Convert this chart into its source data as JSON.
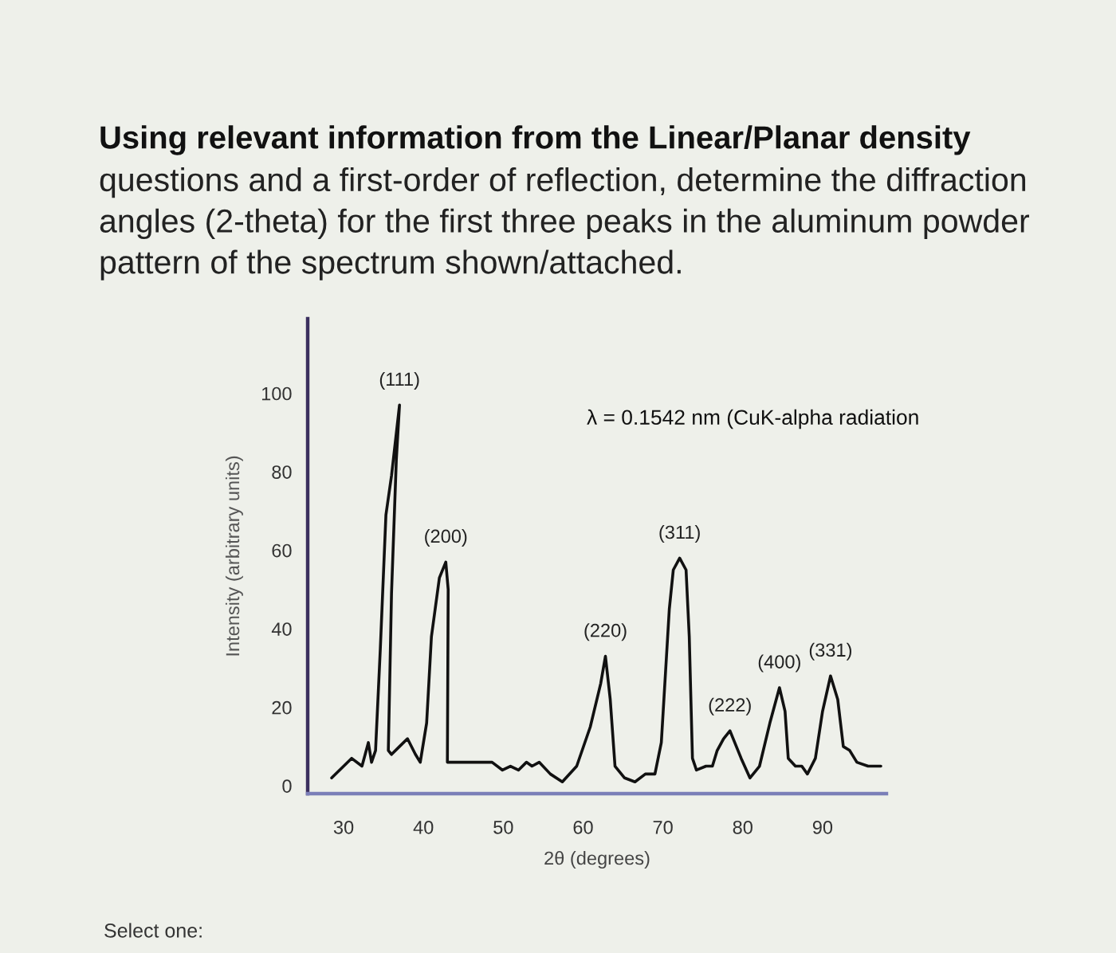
{
  "chart_data": {
    "type": "line",
    "title": "Using relevant information from the Linear/Planar density",
    "subtitle": "questions and a first-order of reflection, determine the diffraction angles (2-theta) for the first three peaks in the aluminum powder pattern of the spectrum shown/attached.",
    "xlabel": "2θ (degrees)",
    "ylabel": "Intensity (arbitrary units)",
    "x": [
      28.5,
      31.0,
      32.3,
      33.1,
      33.5,
      34.0,
      34.6,
      35.3,
      36.0,
      37.0,
      36.6,
      36.0,
      35.6,
      36.0,
      37.0,
      38.0,
      39.0,
      39.6,
      40.4,
      41.0,
      42.0,
      42.8,
      43.1,
      43.0,
      44.3,
      46.3,
      48.6,
      49.9,
      50.9,
      51.9,
      52.9,
      53.6,
      54.5,
      55.9,
      57.4,
      59.2,
      60.9,
      62.2,
      62.8,
      63.4,
      64.0,
      65.2,
      66.5,
      67.8,
      69.0,
      69.8,
      70.8,
      71.3,
      72.1,
      72.9,
      73.3,
      73.7,
      74.2,
      75.4,
      76.2,
      76.8,
      77.6,
      78.4,
      79.8,
      80.9,
      82.1,
      83.4,
      84.6,
      85.3,
      85.7,
      86.6,
      87.4,
      88.1,
      89.1,
      90.0,
      91.0,
      91.9,
      92.6,
      93.4,
      94.3,
      95.7,
      97.3
    ],
    "series": [
      {
        "color": "#111111",
        "values": [
          2,
          7,
          5,
          11,
          6,
          9,
          35,
          69,
          79,
          97,
          83,
          49,
          9,
          8,
          10,
          12,
          8,
          6,
          16,
          38,
          53,
          57,
          50,
          6,
          6,
          6,
          6,
          4,
          5,
          4,
          6,
          5,
          6,
          3,
          1,
          5,
          15,
          26,
          33,
          22,
          5,
          2,
          1,
          3,
          3,
          11,
          45,
          55,
          58,
          55,
          38,
          7,
          4,
          5,
          5,
          9,
          12,
          14,
          7,
          2,
          5,
          16,
          25,
          19,
          7,
          5,
          5,
          3,
          7,
          19,
          28,
          22,
          10,
          9,
          6,
          5,
          5
        ]
      }
    ],
    "xlim": [
      25.5,
      98
    ],
    "xticks": [
      30,
      40,
      50,
      60,
      70,
      80,
      90
    ],
    "ylim": [
      -2,
      119
    ],
    "yticks": [
      0,
      20,
      40,
      60,
      80,
      100
    ],
    "line_style": "solid",
    "annotations": [
      {
        "text": "(111)",
        "x": 37.0,
        "y": 97
      },
      {
        "text": "(200)",
        "x": 42.8,
        "y": 57
      },
      {
        "text": "(220)",
        "x": 62.8,
        "y": 33
      },
      {
        "text": "(311)",
        "x": 72.1,
        "y": 58
      },
      {
        "text": "(222)",
        "x": 78.4,
        "y": 14
      },
      {
        "text": "(400)",
        "x": 84.6,
        "y": 25
      },
      {
        "text": "(331)",
        "x": 91.0,
        "y": 28
      },
      "λ = 0.1542 nm (CuK-alpha radiation",
      "Select one:"
    ]
  }
}
